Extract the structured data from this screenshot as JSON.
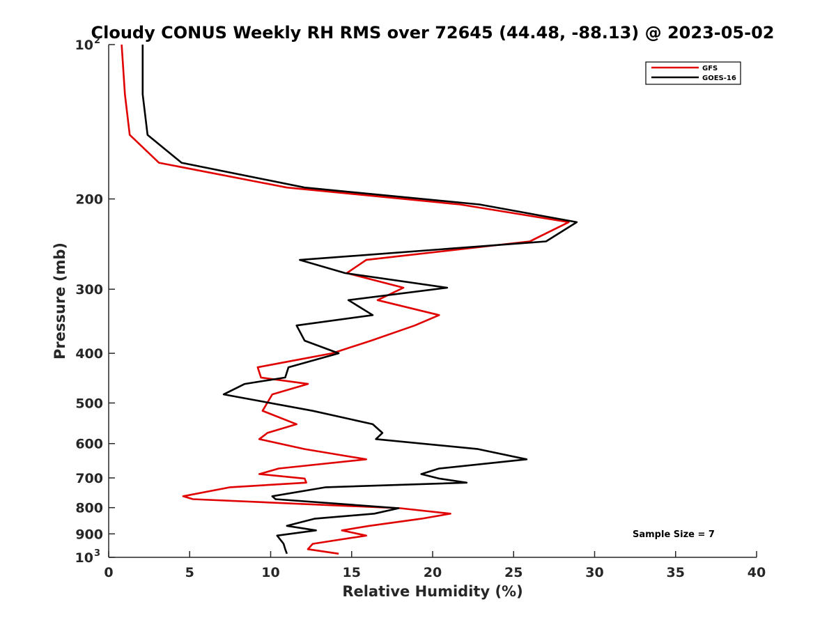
{
  "chart_data": {
    "type": "line",
    "title": "Cloudy CONUS Weekly RH RMS over 72645 (44.48, -88.13) @ 2023-05-02",
    "xlabel": "Relative Humidity (%)",
    "ylabel": "Pressure (mb)",
    "xlim": [
      0,
      40
    ],
    "ylim": [
      100,
      1000
    ],
    "y_scale": "log",
    "y_reversed": true,
    "x_ticks": [
      0,
      5,
      10,
      15,
      20,
      25,
      30,
      35,
      40
    ],
    "y_ticks": [
      {
        "value": 100,
        "label": "10",
        "sup": "2"
      },
      {
        "value": 200,
        "label": "200"
      },
      {
        "value": 300,
        "label": "300"
      },
      {
        "value": 400,
        "label": "400"
      },
      {
        "value": 500,
        "label": "500"
      },
      {
        "value": 600,
        "label": "600"
      },
      {
        "value": 700,
        "label": "700"
      },
      {
        "value": 800,
        "label": "800"
      },
      {
        "value": 900,
        "label": "900"
      },
      {
        "value": 1000,
        "label": "10",
        "sup": "3"
      }
    ],
    "legend_position": "top-right",
    "grid": false,
    "annotation": "Sample Size = 7",
    "series": [
      {
        "name": "GFS",
        "color": "#e00000",
        "points": [
          [
            0.8,
            100
          ],
          [
            1.0,
            125
          ],
          [
            1.3,
            150
          ],
          [
            3.1,
            170
          ],
          [
            11.0,
            190
          ],
          [
            21.7,
            205
          ],
          [
            28.4,
            222
          ],
          [
            26.0,
            242
          ],
          [
            15.9,
            263
          ],
          [
            14.7,
            279
          ],
          [
            18.2,
            298
          ],
          [
            16.6,
            315
          ],
          [
            20.4,
            337
          ],
          [
            18.9,
            353
          ],
          [
            16.2,
            378
          ],
          [
            13.8,
            400
          ],
          [
            9.2,
            426
          ],
          [
            9.4,
            446
          ],
          [
            12.3,
            459
          ],
          [
            10.1,
            481
          ],
          [
            9.5,
            518
          ],
          [
            11.6,
            550
          ],
          [
            9.8,
            572
          ],
          [
            9.3,
            588
          ],
          [
            12.1,
            615
          ],
          [
            15.9,
            644
          ],
          [
            10.5,
            671
          ],
          [
            9.3,
            688
          ],
          [
            12.1,
            702
          ],
          [
            12.2,
            715
          ],
          [
            7.5,
            730
          ],
          [
            4.6,
            760
          ],
          [
            5.2,
            770
          ],
          [
            18.0,
            802
          ],
          [
            21.1,
            822
          ],
          [
            19.3,
            841
          ],
          [
            16.1,
            868
          ],
          [
            14.4,
            886
          ],
          [
            15.9,
            907
          ],
          [
            12.6,
            941
          ],
          [
            12.3,
            964
          ],
          [
            14.2,
            984
          ]
        ]
      },
      {
        "name": "GOES-16",
        "color": "#000000",
        "points": [
          [
            2.1,
            100
          ],
          [
            2.1,
            125
          ],
          [
            2.4,
            150
          ],
          [
            4.5,
            170
          ],
          [
            12.1,
            190
          ],
          [
            22.9,
            205
          ],
          [
            28.9,
            222
          ],
          [
            27.0,
            242
          ],
          [
            11.8,
            263
          ],
          [
            14.6,
            279
          ],
          [
            20.9,
            298
          ],
          [
            14.8,
            315
          ],
          [
            16.3,
            337
          ],
          [
            11.6,
            353
          ],
          [
            12.1,
            378
          ],
          [
            14.2,
            400
          ],
          [
            11.1,
            426
          ],
          [
            10.9,
            446
          ],
          [
            8.4,
            459
          ],
          [
            7.1,
            481
          ],
          [
            12.6,
            518
          ],
          [
            16.3,
            550
          ],
          [
            16.9,
            572
          ],
          [
            16.5,
            588
          ],
          [
            22.8,
            615
          ],
          [
            25.8,
            644
          ],
          [
            20.4,
            671
          ],
          [
            19.3,
            688
          ],
          [
            20.4,
            702
          ],
          [
            22.1,
            715
          ],
          [
            13.4,
            730
          ],
          [
            10.1,
            760
          ],
          [
            10.3,
            770
          ],
          [
            17.9,
            802
          ],
          [
            16.4,
            822
          ],
          [
            12.7,
            841
          ],
          [
            11.0,
            868
          ],
          [
            12.8,
            886
          ],
          [
            10.4,
            907
          ],
          [
            10.8,
            941
          ],
          [
            10.9,
            964
          ],
          [
            11.0,
            984
          ]
        ]
      }
    ]
  }
}
